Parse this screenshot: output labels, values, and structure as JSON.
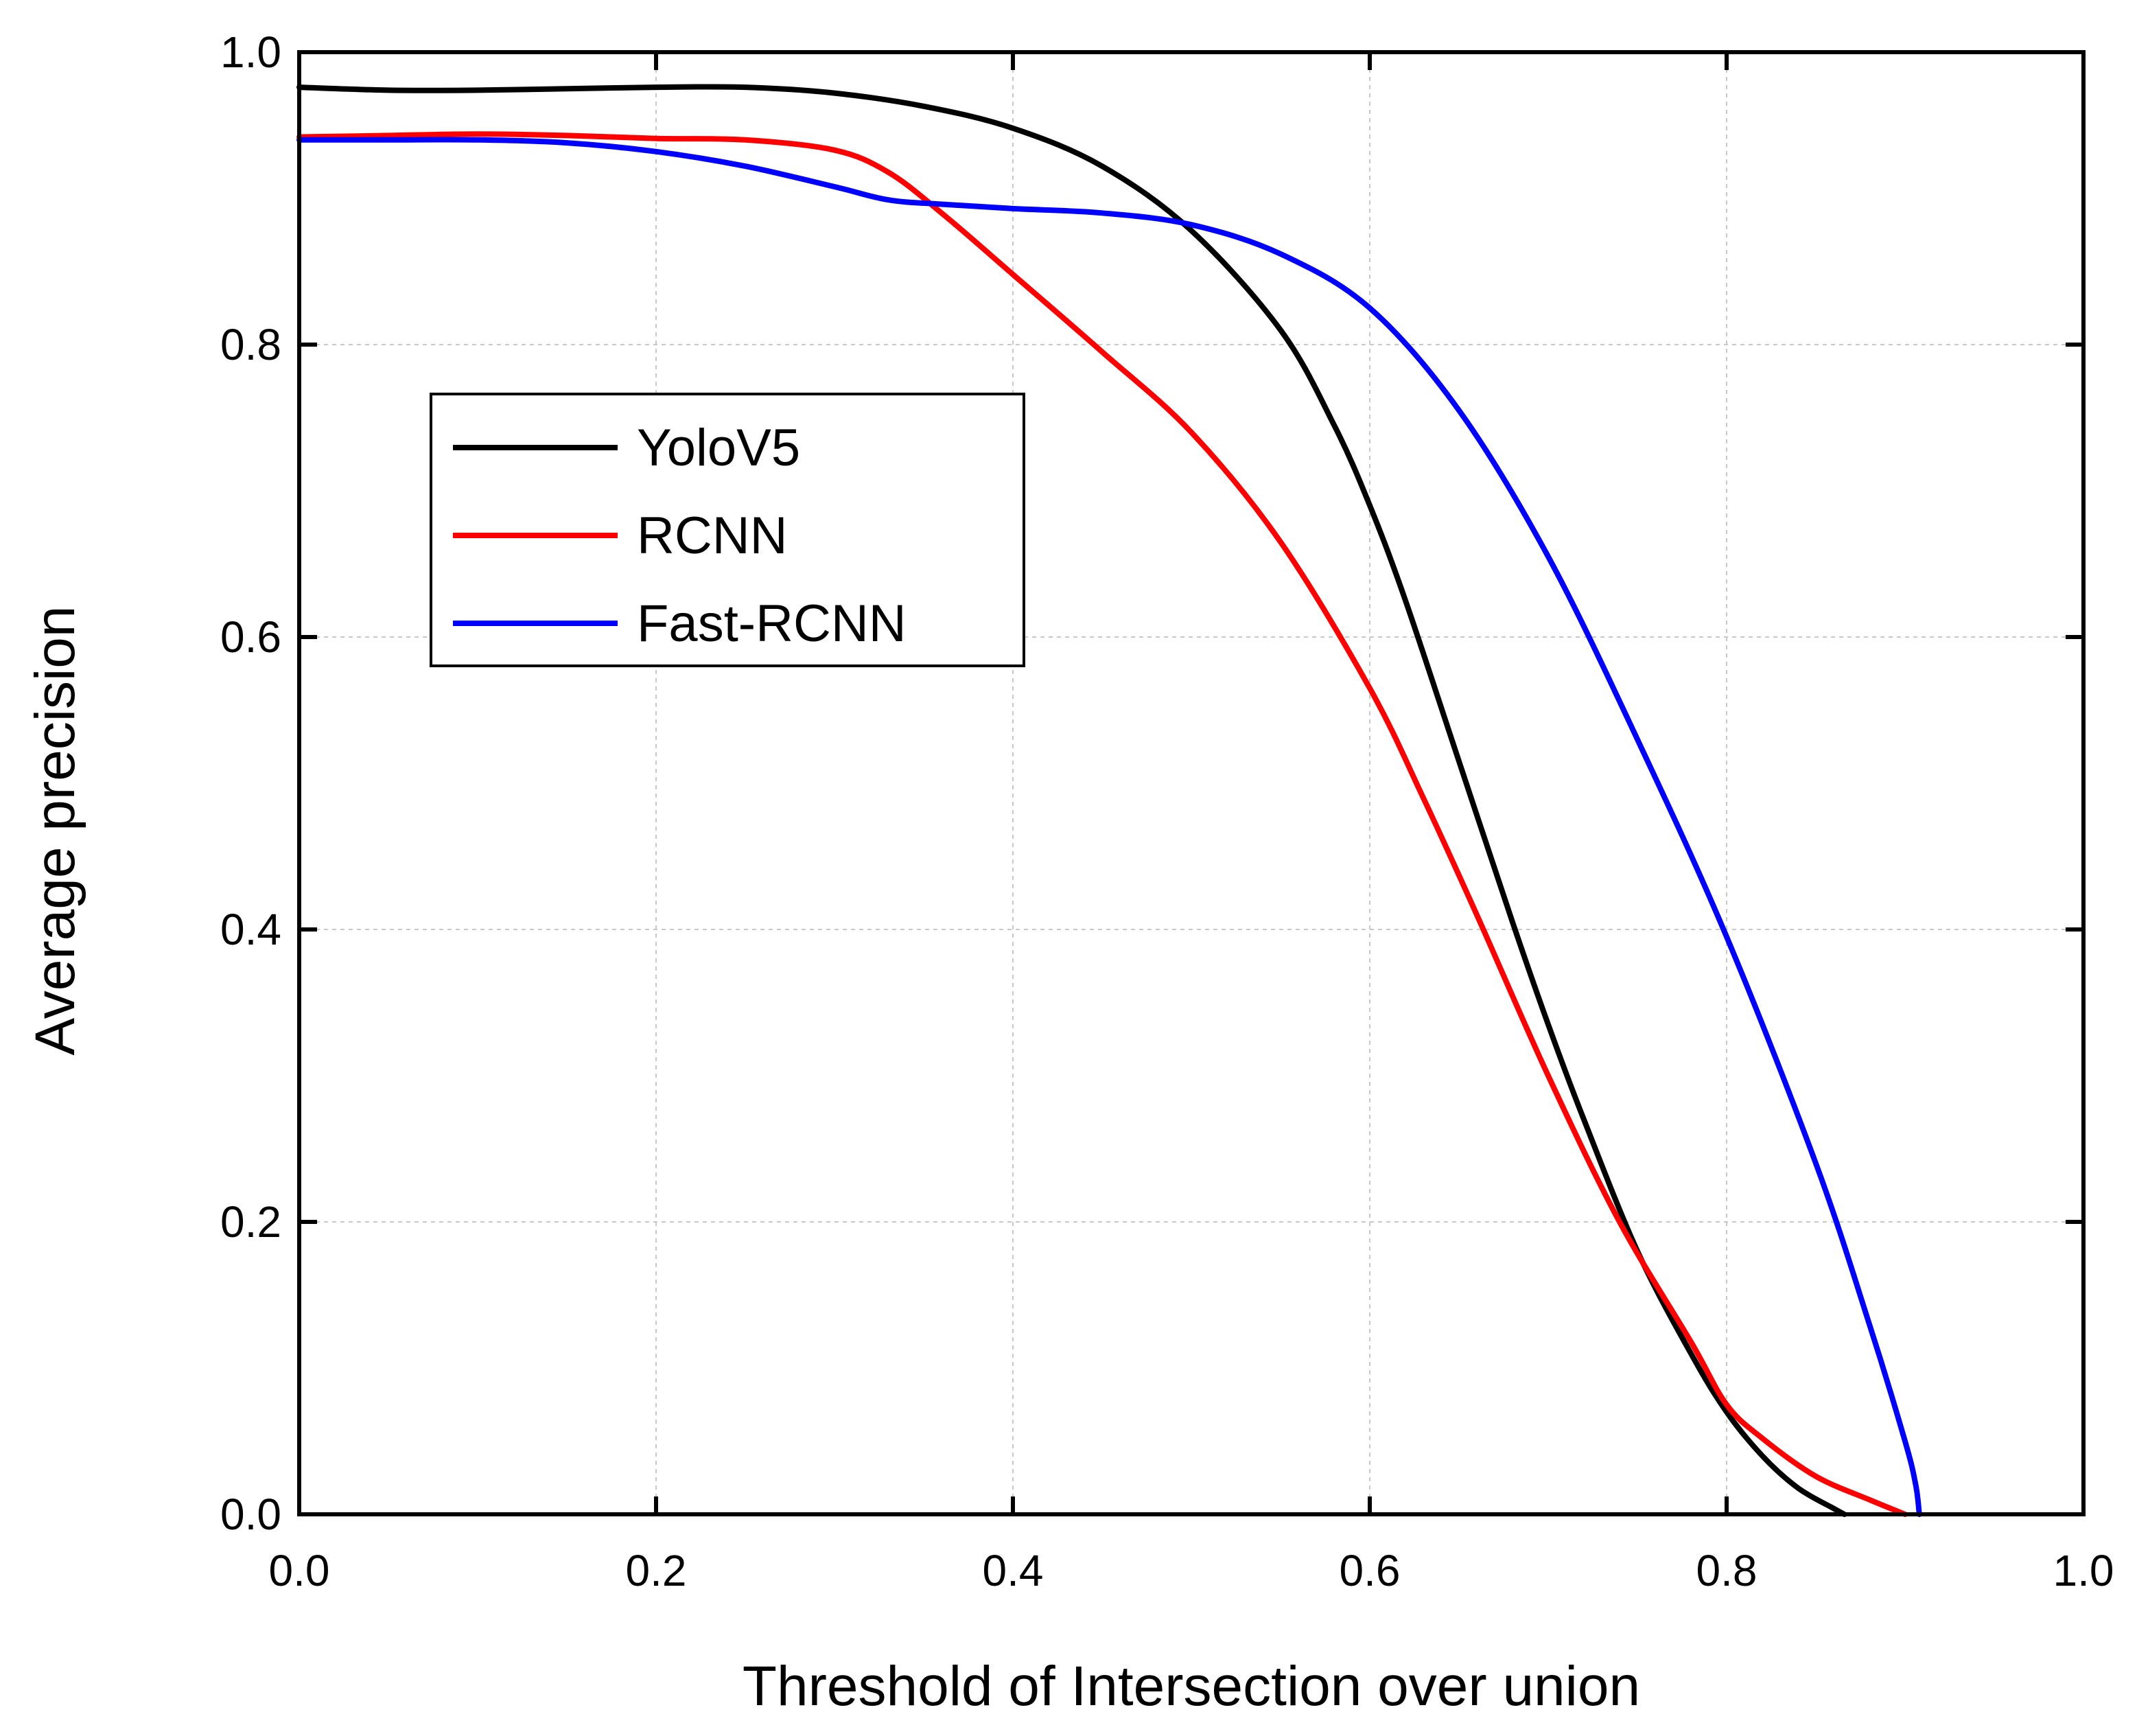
{
  "chart_data": {
    "type": "line",
    "title": "",
    "xlabel": "Threshold of Intersection over union",
    "ylabel": "Average precision",
    "xlim": [
      0,
      1
    ],
    "ylim": [
      0,
      1
    ],
    "x_ticks": [
      "0.0",
      "0.2",
      "0.4",
      "0.6",
      "0.8",
      "1.0"
    ],
    "y_ticks": [
      "0.0",
      "0.2",
      "0.4",
      "0.6",
      "0.8",
      "1.0"
    ],
    "grid": true,
    "legend_position": "upper-left",
    "series": [
      {
        "name": "YoloV5",
        "color": "#000000",
        "x": [
          0,
          0.05,
          0.1,
          0.15,
          0.2,
          0.25,
          0.3,
          0.35,
          0.4,
          0.45,
          0.5,
          0.55,
          0.58,
          0.6,
          0.62,
          0.65,
          0.68,
          0.7,
          0.72,
          0.75,
          0.78,
          0.8,
          0.82,
          0.84,
          0.86,
          0.866
        ],
        "y": [
          0.976,
          0.974,
          0.974,
          0.975,
          0.976,
          0.976,
          0.972,
          0.963,
          0.948,
          0.922,
          0.878,
          0.81,
          0.745,
          0.69,
          0.625,
          0.515,
          0.405,
          0.335,
          0.27,
          0.18,
          0.11,
          0.07,
          0.04,
          0.018,
          0.004,
          0
        ]
      },
      {
        "name": "RCNN",
        "color": "#ff0000",
        "x": [
          0,
          0.05,
          0.1,
          0.15,
          0.2,
          0.25,
          0.3,
          0.33,
          0.36,
          0.4,
          0.45,
          0.5,
          0.55,
          0.6,
          0.63,
          0.66,
          0.7,
          0.74,
          0.78,
          0.8,
          0.82,
          0.85,
          0.88,
          0.9
        ],
        "y": [
          0.942,
          0.943,
          0.944,
          0.943,
          0.941,
          0.94,
          0.933,
          0.918,
          0.89,
          0.848,
          0.795,
          0.74,
          0.665,
          0.565,
          0.49,
          0.41,
          0.3,
          0.2,
          0.118,
          0.075,
          0.052,
          0.026,
          0.01,
          0
        ]
      },
      {
        "name": "Fast-RCNN",
        "color": "#0000ff",
        "x": [
          0,
          0.05,
          0.1,
          0.15,
          0.2,
          0.25,
          0.3,
          0.33,
          0.36,
          0.4,
          0.45,
          0.5,
          0.55,
          0.6,
          0.65,
          0.7,
          0.75,
          0.8,
          0.85,
          0.88,
          0.9,
          0.906,
          0.908
        ],
        "y": [
          0.94,
          0.94,
          0.94,
          0.938,
          0.932,
          0.922,
          0.908,
          0.899,
          0.896,
          0.893,
          0.89,
          0.882,
          0.862,
          0.825,
          0.755,
          0.655,
          0.53,
          0.395,
          0.24,
          0.13,
          0.05,
          0.02,
          0
        ]
      }
    ]
  }
}
